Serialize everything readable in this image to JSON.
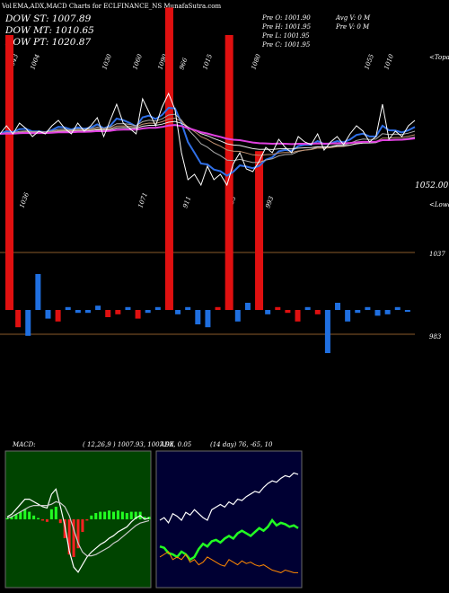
{
  "header": {
    "title": "EMA,ADX,MACD Charts for ECLFINANCE_NS MunafaSutra.com",
    "title_prefix": "Vol",
    "dow_st": "DOW ST: 1007.89",
    "dow_mt": "DOW MT: 1010.65",
    "dow_pt": "DOW PT: 1020.87",
    "prev_open": "Pre   O: 1001.90",
    "prev_high": "Pre   H: 1001.95",
    "prev_low": "Pre   L: 1001.95",
    "prev_close": "Pre   C: 1001.95",
    "avg_vol": "Avg V: 0   M",
    "prev_vol": "Pre   V: 0   M"
  },
  "price_panel": {
    "right_label_top": "<Topa",
    "right_label_low": "<Lowa",
    "last_price_label": "1052.00",
    "level_1037": "1037",
    "level_983": "983",
    "top_labels": [
      "1043",
      "1004",
      "1030",
      "1060",
      "1090",
      "966",
      "1015",
      "1080",
      "1055",
      "1010"
    ],
    "low_labels": [
      "1036",
      "1071",
      "911",
      "853",
      "993"
    ]
  },
  "macd_panel": {
    "title": "MACD:",
    "params": "( 12,26,9 ) 1007.93,  1007.98,  0.05"
  },
  "adx_panel": {
    "title": "ADX",
    "params": "(14  day) 76,  -65,  10"
  },
  "colors": {
    "up_bar": "#1f6fe0",
    "down_bar": "#e01010",
    "ema_short": "#3070e8",
    "ema_long": "#e040e0",
    "adx_plus": "#22ff22",
    "adx_minus": "#ff8800",
    "macd_bg": "#004400"
  },
  "chart_data": [
    {
      "type": "line",
      "name": "price",
      "y": [
        1047,
        1050,
        1047,
        1051,
        1049,
        1046,
        1048,
        1047,
        1050,
        1052,
        1049,
        1047,
        1051,
        1048,
        1050,
        1053,
        1046,
        1052,
        1058,
        1051,
        1049,
        1047,
        1060,
        1055,
        1050,
        1057,
        1062,
        1056,
        1040,
        1030,
        1032,
        1028,
        1035,
        1030,
        1032,
        1028,
        1036,
        1040,
        1034,
        1033,
        1037,
        1042,
        1040,
        1045,
        1042,
        1040,
        1046,
        1044,
        1043,
        1047,
        1041,
        1044,
        1046,
        1043,
        1047,
        1050,
        1048,
        1044,
        1046,
        1058,
        1045,
        1048,
        1046,
        1050,
        1052
      ],
      "volume": [
        {
          "v": 0.9,
          "dir": "down",
          "big": true
        },
        {
          "v": 0.12,
          "dir": "down"
        },
        {
          "v": 0.18,
          "dir": "up"
        },
        {
          "v": 0.25,
          "dir": "up"
        },
        {
          "v": 0.06,
          "dir": "up"
        },
        {
          "v": 0.08,
          "dir": "down"
        },
        {
          "v": 0.02,
          "dir": "up"
        },
        {
          "v": 0.02,
          "dir": "up"
        },
        {
          "v": 0.02,
          "dir": "up"
        },
        {
          "v": 0.03,
          "dir": "up"
        },
        {
          "v": 0.05,
          "dir": "down"
        },
        {
          "v": 0.03,
          "dir": "down"
        },
        {
          "v": 0.02,
          "dir": "up"
        },
        {
          "v": 0.06,
          "dir": "down"
        },
        {
          "v": 0.02,
          "dir": "up"
        },
        {
          "v": 0.02,
          "dir": "up"
        },
        {
          "v": 0.99,
          "dir": "down",
          "big": true
        },
        {
          "v": 0.03,
          "dir": "up"
        },
        {
          "v": 0.02,
          "dir": "up"
        },
        {
          "v": 0.1,
          "dir": "up"
        },
        {
          "v": 0.12,
          "dir": "up"
        },
        {
          "v": 0.02,
          "dir": "down"
        },
        {
          "v": 0.9,
          "dir": "down",
          "big": true
        },
        {
          "v": 0.08,
          "dir": "up"
        },
        {
          "v": 0.05,
          "dir": "up"
        },
        {
          "v": 0.52,
          "dir": "down",
          "big": true
        },
        {
          "v": 0.03,
          "dir": "up"
        },
        {
          "v": 0.02,
          "dir": "down"
        },
        {
          "v": 0.02,
          "dir": "down"
        },
        {
          "v": 0.08,
          "dir": "down"
        },
        {
          "v": 0.02,
          "dir": "up"
        },
        {
          "v": 0.03,
          "dir": "down"
        },
        {
          "v": 0.3,
          "dir": "up"
        },
        {
          "v": 0.05,
          "dir": "up"
        },
        {
          "v": 0.08,
          "dir": "up"
        },
        {
          "v": 0.02,
          "dir": "up"
        },
        {
          "v": 0.02,
          "dir": "up"
        },
        {
          "v": 0.04,
          "dir": "up"
        },
        {
          "v": 0.03,
          "dir": "up"
        },
        {
          "v": 0.02,
          "dir": "up"
        },
        {
          "v": 0.01,
          "dir": "up"
        }
      ]
    },
    {
      "type": "line",
      "name": "macd",
      "macd": [
        0.2,
        0.4,
        0.8,
        1.2,
        1.6,
        1.6,
        1.4,
        1.2,
        1.0,
        0.9,
        2.0,
        2.4,
        1.0,
        -0.5,
        -2.5,
        -3.8,
        -4.2,
        -3.6,
        -3.0,
        -2.6,
        -2.3,
        -2.0,
        -1.8,
        -1.5,
        -1.3,
        -1.0,
        -0.8,
        -0.6,
        -0.2,
        0.1,
        0.3,
        0.0,
        0.1
      ],
      "signal": [
        0.1,
        0.2,
        0.4,
        0.6,
        0.8,
        1.0,
        1.1,
        1.1,
        1.1,
        1.1,
        1.2,
        1.4,
        1.3,
        1.0,
        0.3,
        -0.8,
        -1.9,
        -2.6,
        -2.9,
        -2.9,
        -2.8,
        -2.6,
        -2.4,
        -2.2,
        -1.9,
        -1.7,
        -1.4,
        -1.1,
        -0.8,
        -0.5,
        -0.3,
        -0.2,
        -0.1
      ],
      "histogram": [
        0.1,
        0.2,
        0.4,
        0.6,
        0.8,
        0.6,
        0.3,
        0.1,
        -0.1,
        -0.2,
        0.8,
        1.0,
        -0.3,
        -1.5,
        -2.8,
        -3.0,
        -2.3,
        -1.0,
        -0.1,
        0.3,
        0.5,
        0.6,
        0.6,
        0.7,
        0.6,
        0.7,
        0.6,
        0.5,
        0.6,
        0.6,
        0.6,
        0.2,
        0.2
      ]
    },
    {
      "type": "line",
      "name": "adx",
      "adx": [
        50,
        52,
        48,
        55,
        53,
        50,
        56,
        54,
        58,
        55,
        52,
        50,
        58,
        60,
        62,
        60,
        64,
        62,
        66,
        65,
        68,
        70,
        72,
        71,
        75,
        78,
        80,
        79,
        82,
        84,
        83,
        86,
        85
      ],
      "plus_di": [
        30,
        29,
        25,
        24,
        22,
        26,
        24,
        20,
        22,
        28,
        32,
        30,
        34,
        35,
        33,
        36,
        38,
        36,
        40,
        42,
        40,
        38,
        41,
        44,
        42,
        45,
        50,
        46,
        48,
        47,
        45,
        46,
        44
      ],
      "minus_di": [
        22,
        24,
        26,
        20,
        22,
        20,
        24,
        18,
        20,
        16,
        18,
        22,
        20,
        18,
        16,
        15,
        20,
        18,
        16,
        19,
        17,
        18,
        16,
        15,
        16,
        14,
        12,
        11,
        10,
        12,
        11,
        10,
        10
      ]
    }
  ]
}
